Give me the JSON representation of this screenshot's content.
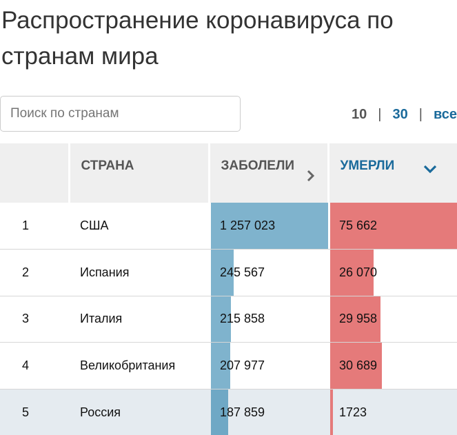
{
  "page": {
    "title": "Распространение коронавируса по странам мира"
  },
  "search": {
    "placeholder": "Поиск по странам"
  },
  "pager": {
    "options": [
      "10",
      "30",
      "все"
    ],
    "active": "10",
    "separator": "|"
  },
  "table": {
    "columns": {
      "rank": "",
      "country": "СТРАНА",
      "cases": "ЗАБОЛЕЛИ",
      "deaths": "УМЕРЛИ"
    },
    "sorted_by": "deaths",
    "rows": [
      {
        "rank": "1",
        "country": "США",
        "cases": "1 257 023",
        "deaths": "75 662",
        "cases_value": 1257023,
        "deaths_value": 75662
      },
      {
        "rank": "2",
        "country": "Испания",
        "cases": "245 567",
        "deaths": "26 070",
        "cases_value": 245567,
        "deaths_value": 26070
      },
      {
        "rank": "3",
        "country": "Италия",
        "cases": "215 858",
        "deaths": "29 958",
        "cases_value": 215858,
        "deaths_value": 29958
      },
      {
        "rank": "4",
        "country": "Великобритания",
        "cases": "207 977",
        "deaths": "30 689",
        "cases_value": 207977,
        "deaths_value": 30689
      },
      {
        "rank": "5",
        "country": "Россия",
        "cases": "187 859",
        "deaths": "1723",
        "cases_value": 187859,
        "deaths_value": 1723
      }
    ],
    "highlighted_row": 4
  },
  "colors": {
    "cases_bar": "#7fb3cd",
    "deaths_bar": "#e57a7a",
    "accent": "#1a6a9b",
    "header_bg": "#efefef",
    "highlight_row_bg": "#e5ebf0"
  },
  "icons": {
    "cases_sort": "chevron-right-icon",
    "deaths_sort": "chevron-down-icon"
  }
}
